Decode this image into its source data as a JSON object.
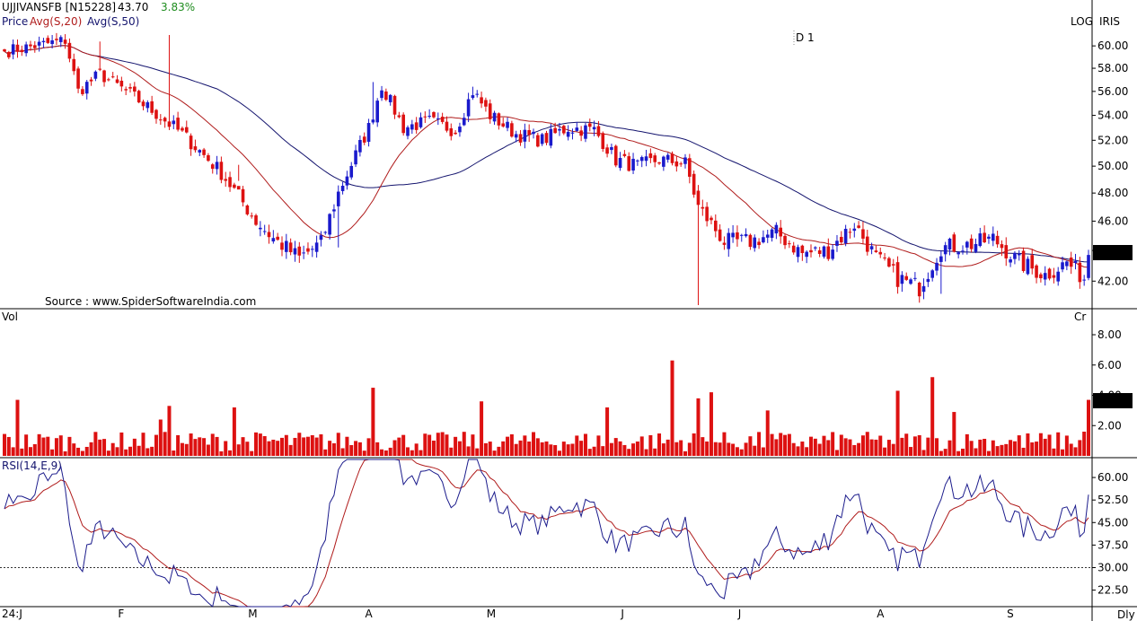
{
  "header": {
    "symbol": "UJJIVANSFB [N15228]",
    "price": "43.70",
    "change": "3.83%",
    "legend_price": "Price",
    "legend_avg20": "Avg(S,20)",
    "legend_avg50": "Avg(S,50)",
    "log_label": "LOG",
    "iris_label": "IRIS",
    "timeframe_label": "D 1",
    "source": "Source : www.SpiderSoftwareIndia.com"
  },
  "volume_panel": {
    "title": "Vol",
    "unit": "Cr"
  },
  "rsi_panel": {
    "title": "RSI(14,E,9)"
  },
  "footer": {
    "period": "Dly"
  },
  "colors": {
    "up": "#1a1acc",
    "down": "#dd1111",
    "avg20": "#b01c1c",
    "avg50": "#14146e",
    "rsi": "#1c1c8c",
    "rsi_signal": "#b01c1c",
    "change": "#1e8c1e",
    "axis": "#000000"
  },
  "chart_data": [
    {
      "type": "candlestick",
      "panel": "price",
      "scale": "log",
      "ylim": [
        40.5,
        61.5
      ],
      "y_ticks": [
        "60.00",
        "58.00",
        "56.00",
        "54.00",
        "52.00",
        "50.00",
        "48.00",
        "46.00",
        "44.00",
        "42.00"
      ],
      "last_price_label": "43.70",
      "x_labels": [
        "24:J",
        "F",
        "M",
        "A",
        "M",
        "J",
        "J",
        "A",
        "S"
      ],
      "anchors": [
        [
          0,
          59.5
        ],
        [
          14,
          60.5
        ],
        [
          17,
          56
        ],
        [
          22,
          57.5
        ],
        [
          30,
          55.5
        ],
        [
          41,
          52.5
        ],
        [
          50,
          49.5
        ],
        [
          58,
          46
        ],
        [
          62,
          44.8
        ],
        [
          68,
          43.5
        ],
        [
          73,
          44.5
        ],
        [
          77,
          48
        ],
        [
          84,
          53
        ],
        [
          87,
          56.5
        ],
        [
          92,
          53
        ],
        [
          98,
          53.5
        ],
        [
          104,
          52.8
        ],
        [
          108,
          56
        ],
        [
          112,
          54
        ],
        [
          118,
          52.5
        ],
        [
          124,
          52
        ],
        [
          130,
          53
        ],
        [
          136,
          52.8
        ],
        [
          141,
          50.5
        ],
        [
          146,
          50
        ],
        [
          151,
          50.5
        ],
        [
          157,
          50.2
        ],
        [
          160,
          47
        ],
        [
          166,
          44.6
        ],
        [
          172,
          44.6
        ],
        [
          178,
          45.2
        ],
        [
          184,
          43.8
        ],
        [
          190,
          44
        ],
        [
          196,
          45.8
        ],
        [
          201,
          43.5
        ],
        [
          206,
          42.2
        ],
        [
          211,
          41.6
        ],
        [
          216,
          44.2
        ],
        [
          223,
          44.4
        ],
        [
          228,
          44.8
        ],
        [
          234,
          43.2
        ],
        [
          240,
          42.4
        ],
        [
          245,
          43.2
        ],
        [
          249,
          42.2
        ],
        [
          250,
          43.7
        ]
      ],
      "notes": "Daily OHLC candles over 251 sessions, reconstructed from the plotted shape; closes follow the anchor path above.",
      "series": [
        {
          "name": "Avg(S,20)",
          "kind": "SMA-20 of close"
        },
        {
          "name": "Avg(S,50)",
          "kind": "SMA-50 of close"
        }
      ]
    },
    {
      "type": "bar",
      "panel": "volume",
      "unit": "Cr",
      "ylim": [
        0,
        9.6
      ],
      "y_ticks": [
        "8.00",
        "6.00",
        "4.00",
        "2.00"
      ],
      "last_value_label": "3.70",
      "spikes": [
        [
          3,
          3.7
        ],
        [
          36,
          2.4
        ],
        [
          38,
          3.3
        ],
        [
          53,
          3.2
        ],
        [
          85,
          4.5
        ],
        [
          110,
          3.6
        ],
        [
          139,
          3.2
        ],
        [
          154,
          6.3
        ],
        [
          160,
          3.8
        ],
        [
          163,
          4.2
        ],
        [
          176,
          3.0
        ],
        [
          206,
          4.3
        ],
        [
          214,
          5.2
        ],
        [
          219,
          2.9
        ],
        [
          249,
          1.6
        ],
        [
          250,
          3.7
        ]
      ],
      "notes": "Baseline volume around 0.3–1.7 Cr with the spikes listed."
    },
    {
      "type": "line",
      "panel": "rsi",
      "ylim": [
        17,
        66
      ],
      "y_ticks": [
        "60.00",
        "52.50",
        "45.00",
        "37.50",
        "30.00",
        "22.50"
      ],
      "reference_line": 30,
      "series": [
        {
          "name": "RSI(14,E,9)",
          "kind": "RSI-14 of close"
        },
        {
          "name": "signal",
          "kind": "EMA-9 of RSI"
        }
      ]
    }
  ]
}
